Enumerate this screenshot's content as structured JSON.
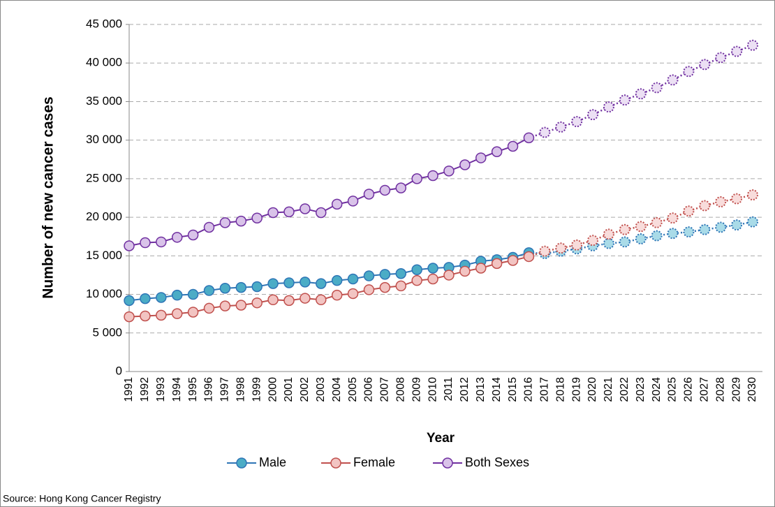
{
  "chart_data": {
    "type": "line",
    "y_label": "Number of new cancer cases",
    "x_label": "Year",
    "source": "Source: Hong Kong Cancer Registry",
    "categories": [
      "1991",
      "1992",
      "1993",
      "1994",
      "1995",
      "1996",
      "1997",
      "1998",
      "1999",
      "2000",
      "2001",
      "2002",
      "2003",
      "2004",
      "2005",
      "2006",
      "2007",
      "2008",
      "2009",
      "2010",
      "2011",
      "2012",
      "2013",
      "2014",
      "2015",
      "2016",
      "2017",
      "2018",
      "2019",
      "2020",
      "2021",
      "2022",
      "2023",
      "2024",
      "2025",
      "2026",
      "2027",
      "2028",
      "2029",
      "2030"
    ],
    "projection_start": "2017",
    "ylim": [
      0,
      45000
    ],
    "yticks": [
      0,
      {
        "value": 5000,
        "label": "5 000"
      },
      {
        "value": 10000,
        "label": "10 000"
      },
      {
        "value": 15000,
        "label": "15 000"
      },
      {
        "value": 20000,
        "label": "20 000"
      },
      {
        "value": 25000,
        "label": "25 000"
      },
      {
        "value": 30000,
        "label": "30 000"
      },
      {
        "value": 35000,
        "label": "35 000"
      },
      {
        "value": 40000,
        "label": "40 000"
      },
      {
        "value": 45000,
        "label": "45 000"
      }
    ],
    "grid": true,
    "legend": "bottom",
    "series": [
      {
        "name": "Male",
        "color": "#2e75b6",
        "marker_color": "#4bacc6",
        "projected_marker_color": "#a9dbe8",
        "values": [
          9200,
          9450,
          9600,
          9900,
          10000,
          10500,
          10800,
          10900,
          11000,
          11400,
          11500,
          11600,
          11400,
          11800,
          12000,
          12400,
          12600,
          12700,
          13200,
          13400,
          13500,
          13800,
          14300,
          14500,
          14800,
          15400,
          15300,
          15600,
          15900,
          16300,
          16600,
          16800,
          17200,
          17600,
          17900,
          18100,
          18400,
          18700,
          19000,
          19400
        ]
      },
      {
        "name": "Female",
        "color": "#c0504d",
        "marker_color": "#f2c4c2",
        "projected_marker_color": "#f8dcdb",
        "values": [
          7100,
          7200,
          7300,
          7500,
          7700,
          8200,
          8500,
          8600,
          8900,
          9300,
          9200,
          9500,
          9300,
          9900,
          10100,
          10600,
          10900,
          11100,
          11800,
          12000,
          12500,
          13000,
          13400,
          14000,
          14400,
          14900,
          15600,
          16000,
          16400,
          17000,
          17800,
          18400,
          18800,
          19300,
          19900,
          20800,
          21500,
          22000,
          22400,
          22900
        ]
      },
      {
        "name": "Both Sexes",
        "color": "#7030a0",
        "marker_color": "#d9c3e9",
        "projected_marker_color": "#ece0f4",
        "values": [
          16300,
          16700,
          16800,
          17400,
          17700,
          18700,
          19300,
          19500,
          19900,
          20600,
          20700,
          21100,
          20600,
          21700,
          22100,
          23000,
          23500,
          23800,
          25000,
          25400,
          26000,
          26800,
          27700,
          28500,
          29200,
          30300,
          31000,
          31700,
          32400,
          33300,
          34300,
          35200,
          36000,
          36800,
          37800,
          38900,
          39800,
          40700,
          41500,
          42300
        ]
      }
    ]
  }
}
